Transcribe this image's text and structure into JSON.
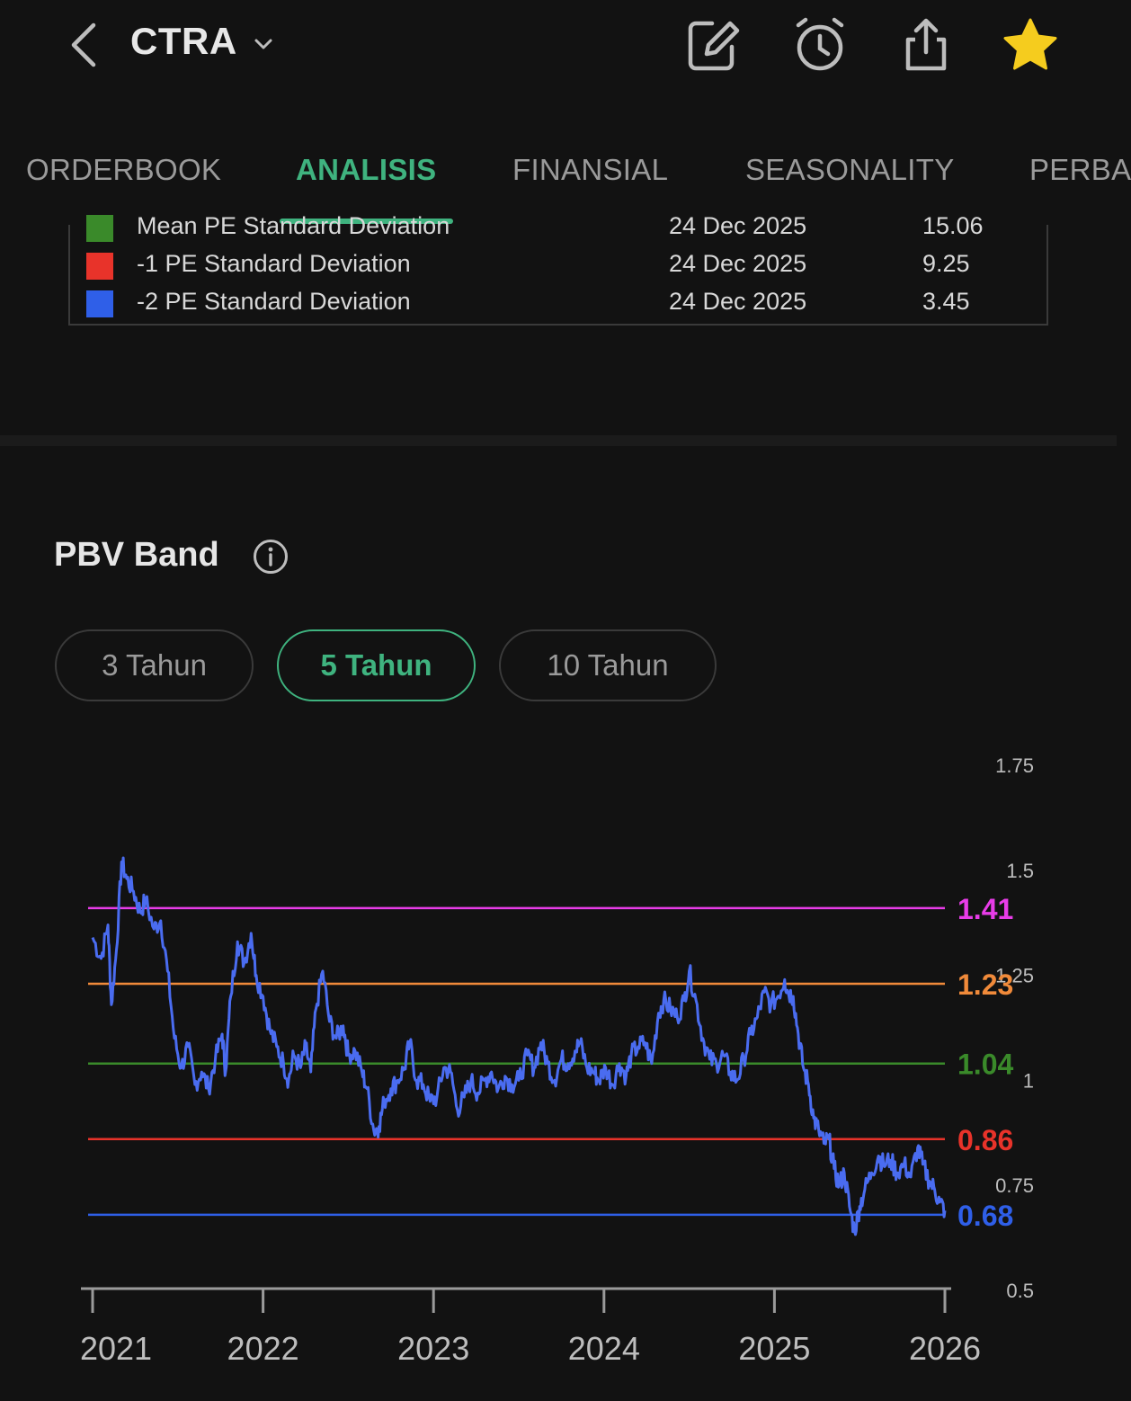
{
  "header": {
    "ticker": "CTRA",
    "icons": [
      "back-icon",
      "chevron-down-icon",
      "edit-icon",
      "alarm-clock-icon",
      "share-icon",
      "star-icon"
    ]
  },
  "tabs": [
    {
      "label": "ORDERBOOK",
      "active": false
    },
    {
      "label": "ANALISIS",
      "active": true
    },
    {
      "label": "FINANSIAL",
      "active": false
    },
    {
      "label": "SEASONALITY",
      "active": false
    },
    {
      "label": "PERBA",
      "active": false
    }
  ],
  "pe_legend": {
    "rows": [
      {
        "name": "Mean PE Standard Deviation",
        "date": "24 Dec 2025",
        "value": "15.06",
        "color": "#3a8a2a"
      },
      {
        "name": "-1 PE Standard Deviation",
        "date": "24 Dec 2025",
        "value": "9.25",
        "color": "#e8332a"
      },
      {
        "name": "-2 PE Standard Deviation",
        "date": "24 Dec 2025",
        "value": "3.45",
        "color": "#2f5fe8"
      }
    ]
  },
  "pbv": {
    "title": "PBV Band",
    "ranges": [
      {
        "label": "3 Tahun",
        "active": false
      },
      {
        "label": "5 Tahun",
        "active": true
      },
      {
        "label": "10 Tahun",
        "active": false
      }
    ]
  },
  "chart_data": {
    "type": "line",
    "title": "PBV Band",
    "x_ticks": [
      "2021",
      "2022",
      "2023",
      "2024",
      "2025",
      "2026"
    ],
    "x_range": [
      2021,
      2026
    ],
    "y_ticks": [
      "1.75",
      "1.5",
      "1.25",
      "1",
      "0.75",
      "0.5"
    ],
    "ylim": [
      0.5,
      1.75
    ],
    "bands": [
      {
        "label": "1.41",
        "value": 1.41,
        "color": "#e83ce8"
      },
      {
        "label": "1.23",
        "value": 1.23,
        "color": "#f08a3a"
      },
      {
        "label": "1.04",
        "value": 1.04,
        "color": "#3a8a2a"
      },
      {
        "label": "0.86",
        "value": 0.86,
        "color": "#e8332a"
      },
      {
        "label": "0.68",
        "value": 0.68,
        "color": "#2f5fe8"
      }
    ],
    "series": [
      {
        "color": "#4a6cf0",
        "points": [
          [
            2021.0,
            1.34
          ],
          [
            2021.05,
            1.29
          ],
          [
            2021.09,
            1.37
          ],
          [
            2021.11,
            1.18
          ],
          [
            2021.14,
            1.31
          ],
          [
            2021.17,
            1.52
          ],
          [
            2021.2,
            1.48
          ],
          [
            2021.24,
            1.45
          ],
          [
            2021.28,
            1.4
          ],
          [
            2021.31,
            1.43
          ],
          [
            2021.36,
            1.36
          ],
          [
            2021.4,
            1.38
          ],
          [
            2021.44,
            1.26
          ],
          [
            2021.48,
            1.1
          ],
          [
            2021.52,
            1.03
          ],
          [
            2021.56,
            1.08
          ],
          [
            2021.6,
            0.99
          ],
          [
            2021.64,
            1.02
          ],
          [
            2021.68,
            0.98
          ],
          [
            2021.72,
            1.05
          ],
          [
            2021.76,
            1.11
          ],
          [
            2021.78,
            1.02
          ],
          [
            2021.81,
            1.2
          ],
          [
            2021.85,
            1.33
          ],
          [
            2021.89,
            1.28
          ],
          [
            2021.93,
            1.35
          ],
          [
            2021.96,
            1.25
          ],
          [
            2022.0,
            1.2
          ],
          [
            2022.04,
            1.12
          ],
          [
            2022.08,
            1.08
          ],
          [
            2022.12,
            1.04
          ],
          [
            2022.15,
            1.0
          ],
          [
            2022.18,
            1.06
          ],
          [
            2022.22,
            1.03
          ],
          [
            2022.25,
            1.08
          ],
          [
            2022.28,
            1.02
          ],
          [
            2022.31,
            1.17
          ],
          [
            2022.35,
            1.26
          ],
          [
            2022.39,
            1.14
          ],
          [
            2022.43,
            1.1
          ],
          [
            2022.47,
            1.13
          ],
          [
            2022.5,
            1.06
          ],
          [
            2022.54,
            1.07
          ],
          [
            2022.58,
            1.02
          ],
          [
            2022.61,
            0.98
          ],
          [
            2022.65,
            0.88
          ],
          [
            2022.68,
            0.89
          ],
          [
            2022.71,
            0.95
          ],
          [
            2022.75,
            0.98
          ],
          [
            2022.79,
            1.0
          ],
          [
            2022.83,
            1.03
          ],
          [
            2022.86,
            1.09
          ],
          [
            2022.9,
            1.0
          ],
          [
            2022.94,
            0.99
          ],
          [
            2022.98,
            0.95
          ],
          [
            2023.02,
            0.96
          ],
          [
            2023.06,
            1.03
          ],
          [
            2023.1,
            1.02
          ],
          [
            2023.14,
            0.93
          ],
          [
            2023.18,
            0.96
          ],
          [
            2023.22,
            1.0
          ],
          [
            2023.26,
            0.97
          ],
          [
            2023.3,
            1.0
          ],
          [
            2023.34,
            1.02
          ],
          [
            2023.38,
            0.98
          ],
          [
            2023.42,
            1.01
          ],
          [
            2023.46,
            0.99
          ],
          [
            2023.5,
            1.0
          ],
          [
            2023.55,
            1.06
          ],
          [
            2023.59,
            1.03
          ],
          [
            2023.63,
            1.09
          ],
          [
            2023.67,
            1.04
          ],
          [
            2023.71,
            1.0
          ],
          [
            2023.75,
            1.05
          ],
          [
            2023.79,
            1.04
          ],
          [
            2023.83,
            1.07
          ],
          [
            2023.86,
            1.09
          ],
          [
            2023.9,
            1.03
          ],
          [
            2023.94,
            1.02
          ],
          [
            2023.97,
            1.0
          ],
          [
            2024.01,
            1.03
          ],
          [
            2024.05,
            0.99
          ],
          [
            2024.09,
            1.04
          ],
          [
            2024.13,
            1.01
          ],
          [
            2024.16,
            1.06
          ],
          [
            2024.2,
            1.08
          ],
          [
            2024.24,
            1.09
          ],
          [
            2024.28,
            1.04
          ],
          [
            2024.32,
            1.16
          ],
          [
            2024.35,
            1.19
          ],
          [
            2024.39,
            1.17
          ],
          [
            2024.43,
            1.15
          ],
          [
            2024.47,
            1.19
          ],
          [
            2024.5,
            1.26
          ],
          [
            2024.54,
            1.19
          ],
          [
            2024.58,
            1.1
          ],
          [
            2024.62,
            1.05
          ],
          [
            2024.66,
            1.04
          ],
          [
            2024.7,
            1.06
          ],
          [
            2024.74,
            1.02
          ],
          [
            2024.78,
            1.0
          ],
          [
            2024.82,
            1.05
          ],
          [
            2024.86,
            1.11
          ],
          [
            2024.9,
            1.15
          ],
          [
            2024.94,
            1.21
          ],
          [
            2024.98,
            1.18
          ],
          [
            2025.02,
            1.2
          ],
          [
            2025.06,
            1.24
          ],
          [
            2025.08,
            1.21
          ],
          [
            2025.11,
            1.2
          ],
          [
            2025.14,
            1.11
          ],
          [
            2025.17,
            1.03
          ],
          [
            2025.2,
            0.99
          ],
          [
            2025.23,
            0.91
          ],
          [
            2025.26,
            0.88
          ],
          [
            2025.29,
            0.85
          ],
          [
            2025.32,
            0.86
          ],
          [
            2025.35,
            0.79
          ],
          [
            2025.38,
            0.75
          ],
          [
            2025.41,
            0.78
          ],
          [
            2025.44,
            0.7
          ],
          [
            2025.47,
            0.64
          ],
          [
            2025.5,
            0.7
          ],
          [
            2025.53,
            0.74
          ],
          [
            2025.57,
            0.78
          ],
          [
            2025.61,
            0.82
          ],
          [
            2025.64,
            0.8
          ],
          [
            2025.68,
            0.81
          ],
          [
            2025.72,
            0.78
          ],
          [
            2025.76,
            0.8
          ],
          [
            2025.8,
            0.77
          ],
          [
            2025.84,
            0.84
          ],
          [
            2025.87,
            0.8
          ],
          [
            2025.91,
            0.76
          ],
          [
            2025.94,
            0.74
          ],
          [
            2025.97,
            0.71
          ],
          [
            2026.0,
            0.69
          ]
        ]
      }
    ]
  }
}
